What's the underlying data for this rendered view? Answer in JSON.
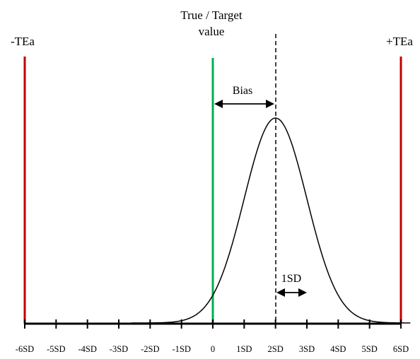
{
  "diagram": {
    "labels": {
      "minus_tea": "-TEa",
      "plus_tea": "+TEa",
      "true_target_line1": "True / Target",
      "true_target_line2": "value",
      "bias": "Bias",
      "one_sd": "1SD"
    },
    "axis": {
      "ticks": [
        "-6SD",
        "-5SD",
        "-4SD",
        "-3SD",
        "-2SD",
        "-1SD",
        "0",
        "1SD",
        "2SD",
        "3SD",
        "4SD",
        "5SD",
        "6SD"
      ]
    },
    "distribution": {
      "mean_sd": 2,
      "sd": 1
    },
    "colors": {
      "tea_lines": "#c00000",
      "target_line": "#00b050",
      "axis": "#000000",
      "curve": "#000000"
    }
  }
}
